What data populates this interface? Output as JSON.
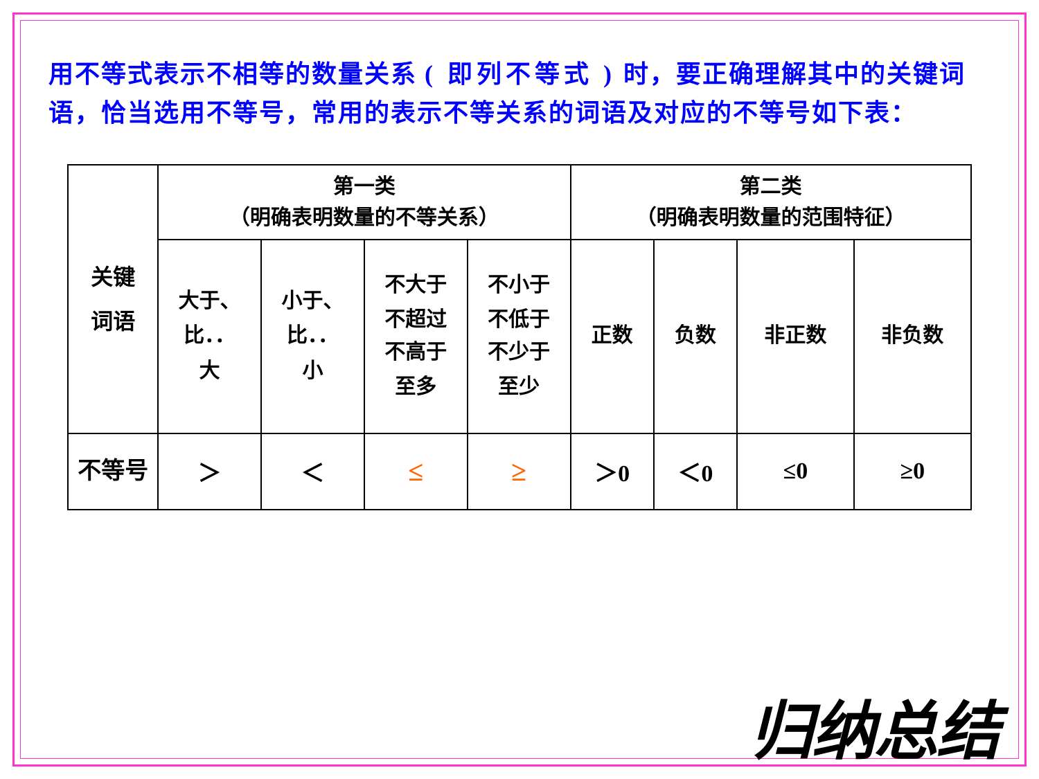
{
  "frame": {
    "outer_color": "#ff33cc",
    "inner_color": "#ff33cc",
    "bg": "#ffffff"
  },
  "intro": {
    "text_before_p1": "用不等式表示不相等的数量关系",
    "p1": "( 即列不等式 )",
    "text_mid": "时，要正确理解其中的关键词语，恰当选用不等号，常用的表示不等关系的词语及对应的不等号如下表：",
    "color": "#0000ff",
    "fontsize_pt": 27
  },
  "table": {
    "row_header_1": "关键\n词语",
    "row_header_2": "不等号",
    "cat1_line1": "第一类",
    "cat1_line2": "（明确表明数量的不等关系）",
    "cat2_line1": "第二类",
    "cat2_line2": "（明确表明数量的范围特征）",
    "keywords": [
      "大于、\n比．．\n大",
      "小于、\n比．．\n小",
      "",
      "",
      "正数",
      "负数",
      "非正数",
      "非负数"
    ],
    "kw3_lines": [
      "不大于",
      "不超过\n不高于",
      "至多"
    ],
    "kw4_lines": [
      "不小于",
      "不低于\n不少于",
      "至少"
    ],
    "symbols": [
      "＞",
      "＜",
      "≤",
      "≥",
      "＞0",
      "＜0",
      "≤0",
      "≥0"
    ],
    "symbol_colors": [
      "#000000",
      "#000000",
      "#ff6600",
      "#ff6600",
      "#000000",
      "#000000",
      "#000000",
      "#000000"
    ],
    "border_color": "#000000",
    "cell_fontsize_pt": 23,
    "symbol_fontsize_pt": 26
  },
  "summary": {
    "text": "归纳总结",
    "color": "#000000",
    "fontsize_pt": 69
  }
}
